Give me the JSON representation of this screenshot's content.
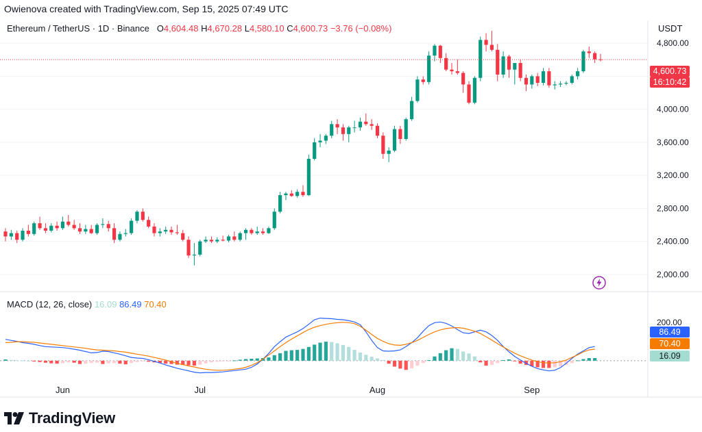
{
  "header": {
    "text": "Owienova created with TradingView.com, Sep 15, 2025 07:49 UTC"
  },
  "legend": {
    "symbol": "Ethereum / TetherUS · 1D · Binance",
    "o_label": "O",
    "o": "4,604.48",
    "h_label": "H",
    "h": "4,670.28",
    "l_label": "L",
    "l": "4,580.10",
    "c_label": "C",
    "c": "4,600.73",
    "change": "−3.76 (−0.08%)"
  },
  "price_axis": {
    "currency": "USDT",
    "ticks": [
      "4,800.00",
      "4,400.00",
      "4,000.00",
      "3,600.00",
      "3,200.00",
      "2,800.00",
      "2,400.00",
      "2,000.00"
    ],
    "last_price_tag": "4,600.73",
    "countdown_tag": "16:10:42"
  },
  "macd": {
    "label": "MACD (12, 26, close)",
    "hist_value": "16.09",
    "macd_value": "86.49",
    "signal_value": "70.40",
    "axis_tick": "200.00"
  },
  "x_axis": {
    "labels": [
      "Jun",
      "Jul",
      "Aug",
      "Sep"
    ]
  },
  "brand": {
    "name": "TradingView"
  },
  "colors": {
    "up": "#089981",
    "down": "#f23645",
    "macd": "#2962ff",
    "signal": "#f57c00",
    "hist_up": "#26a69a",
    "hist_down": "#ff5252"
  },
  "chart_data": {
    "type": "candlestick",
    "symbol": "ETH/USDT",
    "interval": "1D",
    "ylim": [
      1800,
      4950
    ],
    "candles": [
      {
        "o": 2520,
        "h": 2560,
        "l": 2400,
        "c": 2460
      },
      {
        "o": 2460,
        "h": 2540,
        "l": 2420,
        "c": 2500
      },
      {
        "o": 2500,
        "h": 2530,
        "l": 2380,
        "c": 2420
      },
      {
        "o": 2420,
        "h": 2560,
        "l": 2400,
        "c": 2530
      },
      {
        "o": 2530,
        "h": 2600,
        "l": 2460,
        "c": 2490
      },
      {
        "o": 2490,
        "h": 2640,
        "l": 2470,
        "c": 2620
      },
      {
        "o": 2620,
        "h": 2700,
        "l": 2540,
        "c": 2560
      },
      {
        "o": 2560,
        "h": 2620,
        "l": 2500,
        "c": 2530
      },
      {
        "o": 2530,
        "h": 2620,
        "l": 2510,
        "c": 2590
      },
      {
        "o": 2590,
        "h": 2640,
        "l": 2530,
        "c": 2560
      },
      {
        "o": 2560,
        "h": 2700,
        "l": 2540,
        "c": 2640
      },
      {
        "o": 2640,
        "h": 2720,
        "l": 2580,
        "c": 2600
      },
      {
        "o": 2600,
        "h": 2660,
        "l": 2540,
        "c": 2560
      },
      {
        "o": 2560,
        "h": 2620,
        "l": 2490,
        "c": 2520
      },
      {
        "o": 2520,
        "h": 2600,
        "l": 2490,
        "c": 2550
      },
      {
        "o": 2550,
        "h": 2600,
        "l": 2490,
        "c": 2500
      },
      {
        "o": 2500,
        "h": 2620,
        "l": 2480,
        "c": 2600
      },
      {
        "o": 2600,
        "h": 2680,
        "l": 2560,
        "c": 2610
      },
      {
        "o": 2610,
        "h": 2650,
        "l": 2520,
        "c": 2560
      },
      {
        "o": 2560,
        "h": 2620,
        "l": 2380,
        "c": 2420
      },
      {
        "o": 2420,
        "h": 2520,
        "l": 2400,
        "c": 2490
      },
      {
        "o": 2490,
        "h": 2550,
        "l": 2460,
        "c": 2500
      },
      {
        "o": 2500,
        "h": 2680,
        "l": 2480,
        "c": 2650
      },
      {
        "o": 2650,
        "h": 2780,
        "l": 2620,
        "c": 2760
      },
      {
        "o": 2760,
        "h": 2800,
        "l": 2640,
        "c": 2660
      },
      {
        "o": 2660,
        "h": 2700,
        "l": 2560,
        "c": 2580
      },
      {
        "o": 2580,
        "h": 2620,
        "l": 2460,
        "c": 2500
      },
      {
        "o": 2500,
        "h": 2560,
        "l": 2460,
        "c": 2520
      },
      {
        "o": 2520,
        "h": 2580,
        "l": 2490,
        "c": 2540
      },
      {
        "o": 2540,
        "h": 2580,
        "l": 2480,
        "c": 2510
      },
      {
        "o": 2510,
        "h": 2600,
        "l": 2480,
        "c": 2500
      },
      {
        "o": 2500,
        "h": 2540,
        "l": 2400,
        "c": 2420
      },
      {
        "o": 2420,
        "h": 2460,
        "l": 2200,
        "c": 2230
      },
      {
        "o": 2230,
        "h": 2380,
        "l": 2110,
        "c": 2240
      },
      {
        "o": 2240,
        "h": 2420,
        "l": 2220,
        "c": 2400
      },
      {
        "o": 2400,
        "h": 2460,
        "l": 2380,
        "c": 2420
      },
      {
        "o": 2420,
        "h": 2460,
        "l": 2380,
        "c": 2400
      },
      {
        "o": 2400,
        "h": 2450,
        "l": 2380,
        "c": 2420
      },
      {
        "o": 2420,
        "h": 2470,
        "l": 2400,
        "c": 2410
      },
      {
        "o": 2410,
        "h": 2480,
        "l": 2390,
        "c": 2460
      },
      {
        "o": 2460,
        "h": 2520,
        "l": 2400,
        "c": 2420
      },
      {
        "o": 2420,
        "h": 2520,
        "l": 2400,
        "c": 2500
      },
      {
        "o": 2500,
        "h": 2560,
        "l": 2420,
        "c": 2540
      },
      {
        "o": 2540,
        "h": 2560,
        "l": 2480,
        "c": 2500
      },
      {
        "o": 2500,
        "h": 2580,
        "l": 2480,
        "c": 2520
      },
      {
        "o": 2520,
        "h": 2560,
        "l": 2480,
        "c": 2500
      },
      {
        "o": 2500,
        "h": 2580,
        "l": 2490,
        "c": 2560
      },
      {
        "o": 2560,
        "h": 2800,
        "l": 2540,
        "c": 2760
      },
      {
        "o": 2760,
        "h": 3000,
        "l": 2740,
        "c": 2960
      },
      {
        "o": 2960,
        "h": 3000,
        "l": 2900,
        "c": 2980
      },
      {
        "o": 2980,
        "h": 3020,
        "l": 2940,
        "c": 2950
      },
      {
        "o": 2950,
        "h": 3030,
        "l": 2930,
        "c": 3000
      },
      {
        "o": 3000,
        "h": 3080,
        "l": 2940,
        "c": 2960
      },
      {
        "o": 2960,
        "h": 3450,
        "l": 2950,
        "c": 3400
      },
      {
        "o": 3400,
        "h": 3650,
        "l": 3380,
        "c": 3600
      },
      {
        "o": 3600,
        "h": 3700,
        "l": 3540,
        "c": 3620
      },
      {
        "o": 3620,
        "h": 3700,
        "l": 3580,
        "c": 3680
      },
      {
        "o": 3680,
        "h": 3860,
        "l": 3650,
        "c": 3820
      },
      {
        "o": 3820,
        "h": 3880,
        "l": 3700,
        "c": 3780
      },
      {
        "o": 3780,
        "h": 3820,
        "l": 3620,
        "c": 3700
      },
      {
        "o": 3700,
        "h": 3800,
        "l": 3600,
        "c": 3780
      },
      {
        "o": 3780,
        "h": 3860,
        "l": 3720,
        "c": 3780
      },
      {
        "o": 3780,
        "h": 3900,
        "l": 3740,
        "c": 3850
      },
      {
        "o": 3850,
        "h": 3950,
        "l": 3800,
        "c": 3820
      },
      {
        "o": 3820,
        "h": 3880,
        "l": 3750,
        "c": 3800
      },
      {
        "o": 3800,
        "h": 3830,
        "l": 3650,
        "c": 3680
      },
      {
        "o": 3680,
        "h": 3720,
        "l": 3400,
        "c": 3460
      },
      {
        "o": 3460,
        "h": 3540,
        "l": 3360,
        "c": 3500
      },
      {
        "o": 3500,
        "h": 3800,
        "l": 3480,
        "c": 3760
      },
      {
        "o": 3760,
        "h": 3800,
        "l": 3580,
        "c": 3640
      },
      {
        "o": 3640,
        "h": 3900,
        "l": 3620,
        "c": 3880
      },
      {
        "o": 3880,
        "h": 4150,
        "l": 3860,
        "c": 4100
      },
      {
        "o": 4100,
        "h": 4400,
        "l": 4080,
        "c": 4360
      },
      {
        "o": 4360,
        "h": 4400,
        "l": 4300,
        "c": 4330
      },
      {
        "o": 4330,
        "h": 4700,
        "l": 4300,
        "c": 4650
      },
      {
        "o": 4650,
        "h": 4790,
        "l": 4580,
        "c": 4770
      },
      {
        "o": 4770,
        "h": 4780,
        "l": 4560,
        "c": 4620
      },
      {
        "o": 4620,
        "h": 4680,
        "l": 4460,
        "c": 4480
      },
      {
        "o": 4480,
        "h": 4560,
        "l": 4420,
        "c": 4460
      },
      {
        "o": 4460,
        "h": 4600,
        "l": 4420,
        "c": 4440
      },
      {
        "o": 4440,
        "h": 4460,
        "l": 4200,
        "c": 4300
      },
      {
        "o": 4300,
        "h": 4340,
        "l": 4060,
        "c": 4080
      },
      {
        "o": 4080,
        "h": 4400,
        "l": 4060,
        "c": 4380
      },
      {
        "o": 4380,
        "h": 4880,
        "l": 4340,
        "c": 4840
      },
      {
        "o": 4840,
        "h": 4920,
        "l": 4700,
        "c": 4780
      },
      {
        "o": 4780,
        "h": 4950,
        "l": 4700,
        "c": 4720
      },
      {
        "o": 4720,
        "h": 4790,
        "l": 4340,
        "c": 4420
      },
      {
        "o": 4420,
        "h": 4700,
        "l": 4380,
        "c": 4640
      },
      {
        "o": 4640,
        "h": 4660,
        "l": 4380,
        "c": 4480
      },
      {
        "o": 4480,
        "h": 4560,
        "l": 4300,
        "c": 4560
      },
      {
        "o": 4560,
        "h": 4600,
        "l": 4340,
        "c": 4380
      },
      {
        "o": 4380,
        "h": 4420,
        "l": 4220,
        "c": 4300
      },
      {
        "o": 4300,
        "h": 4420,
        "l": 4250,
        "c": 4400
      },
      {
        "o": 4400,
        "h": 4440,
        "l": 4280,
        "c": 4320
      },
      {
        "o": 4320,
        "h": 4500,
        "l": 4290,
        "c": 4460
      },
      {
        "o": 4460,
        "h": 4500,
        "l": 4260,
        "c": 4290
      },
      {
        "o": 4290,
        "h": 4340,
        "l": 4240,
        "c": 4300
      },
      {
        "o": 4300,
        "h": 4340,
        "l": 4270,
        "c": 4310
      },
      {
        "o": 4310,
        "h": 4340,
        "l": 4290,
        "c": 4320
      },
      {
        "o": 4320,
        "h": 4420,
        "l": 4300,
        "c": 4400
      },
      {
        "o": 4400,
        "h": 4500,
        "l": 4360,
        "c": 4460
      },
      {
        "o": 4460,
        "h": 4720,
        "l": 4440,
        "c": 4700
      },
      {
        "o": 4700,
        "h": 4760,
        "l": 4620,
        "c": 4680
      },
      {
        "o": 4680,
        "h": 4700,
        "l": 4560,
        "c": 4604
      },
      {
        "o": 4604.48,
        "h": 4670.28,
        "l": 4580.1,
        "c": 4600.73
      }
    ],
    "last_price": 4600.73,
    "macd": {
      "ylim": [
        -180,
        300
      ],
      "hist": [
        8,
        5,
        3,
        2,
        0,
        -5,
        -8,
        -12,
        -16,
        -18,
        -15,
        -10,
        -12,
        -20,
        -18,
        -14,
        -12,
        -20,
        -16,
        -15,
        -18,
        -22,
        -14,
        -8,
        -2,
        -6,
        -10,
        -14,
        -18,
        -20,
        -24,
        -26,
        -28,
        -30,
        -24,
        -16,
        -10,
        -6,
        -4,
        -2,
        2,
        6,
        10,
        12,
        14,
        16,
        20,
        34,
        46,
        60,
        64,
        66,
        72,
        84,
        98,
        110,
        116,
        114,
        106,
        96,
        84,
        66,
        50,
        36,
        24,
        14,
        4,
        -18,
        -36,
        -48,
        -56,
        -46,
        -30,
        -14,
        4,
        26,
        46,
        64,
        76,
        72,
        56,
        44,
        26,
        -10,
        -30,
        -26,
        -14,
        4,
        8,
        -4,
        -18,
        -26,
        -34,
        -40,
        -44,
        -44,
        -40,
        -34,
        -26,
        -14,
        2,
        10,
        16,
        16.09
      ],
      "macd": [
        130,
        124,
        118,
        110,
        106,
        100,
        92,
        86,
        84,
        82,
        80,
        76,
        70,
        64,
        56,
        48,
        50,
        58,
        56,
        48,
        40,
        30,
        20,
        16,
        14,
        6,
        -4,
        -14,
        -26,
        -36,
        -46,
        -54,
        -62,
        -70,
        -74,
        -72,
        -72,
        -70,
        -68,
        -64,
        -60,
        -56,
        -52,
        -40,
        -20,
        10,
        44,
        86,
        116,
        144,
        160,
        176,
        196,
        222,
        250,
        260,
        258,
        256,
        252,
        250,
        244,
        236,
        220,
        176,
        124,
        80,
        60,
        58,
        60,
        66,
        86,
        110,
        140,
        180,
        214,
        232,
        236,
        228,
        212,
        190,
        170,
        166,
        176,
        186,
        176,
        154,
        124,
        86,
        54,
        26,
        4,
        -16,
        -34,
        -48,
        -56,
        -62,
        -58,
        -42,
        -16,
        14,
        40,
        60,
        80,
        86.49
      ],
      "signal": [
        110,
        112,
        116,
        116,
        114,
        112,
        108,
        104,
        100,
        96,
        92,
        88,
        84,
        80,
        76,
        70,
        66,
        64,
        62,
        60,
        56,
        52,
        46,
        40,
        34,
        28,
        20,
        12,
        4,
        -6,
        -16,
        -24,
        -32,
        -38,
        -46,
        -52,
        -56,
        -58,
        -58,
        -56,
        -52,
        -48,
        -40,
        -28,
        -12,
        10,
        34,
        60,
        86,
        110,
        132,
        152,
        172,
        190,
        204,
        214,
        222,
        228,
        232,
        234,
        232,
        226,
        210,
        186,
        160,
        136,
        118,
        104,
        96,
        94,
        100,
        110,
        124,
        142,
        160,
        176,
        188,
        196,
        200,
        202,
        198,
        190,
        180,
        166,
        146,
        126,
        104,
        84,
        64,
        46,
        30,
        16,
        4,
        -6,
        -12,
        -14,
        -12,
        -6,
        4,
        20,
        36,
        54,
        66,
        70.4
      ]
    }
  }
}
